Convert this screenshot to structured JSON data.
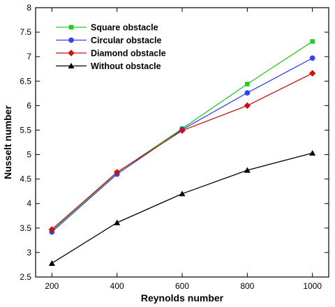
{
  "chart_data": {
    "type": "line",
    "xlabel": "Reynolds number",
    "ylabel": "Nusselt number",
    "xlim": [
      150,
      1050
    ],
    "ylim": [
      2.5,
      8
    ],
    "xticks": [
      200,
      400,
      600,
      800,
      1000
    ],
    "yticks": [
      2.5,
      3,
      3.5,
      4,
      4.5,
      5,
      5.5,
      6,
      6.5,
      7,
      7.5,
      8
    ],
    "xtick_labels": [
      "200",
      "400",
      "600",
      "800",
      "1000"
    ],
    "ytick_labels": [
      "2.5",
      "3",
      "3.5",
      "4",
      "4.5",
      "5",
      "5.5",
      "6",
      "6.5",
      "7",
      "7.5",
      "8"
    ],
    "grid": false,
    "legend_position": "top-left",
    "x": [
      200,
      400,
      600,
      800,
      1000
    ],
    "series": [
      {
        "name": "Square obstacle",
        "color": "#22cc22",
        "marker": "square",
        "values": [
          3.45,
          4.63,
          5.53,
          6.44,
          7.31
        ]
      },
      {
        "name": "Circular obstacle",
        "color": "#3344ee",
        "marker": "circle",
        "values": [
          3.42,
          4.6,
          5.51,
          6.26,
          6.97
        ]
      },
      {
        "name": "Diamond obstacle",
        "color": "#cc1111",
        "marker": "diamond",
        "values": [
          3.47,
          4.64,
          5.49,
          6.0,
          6.66
        ]
      },
      {
        "name": "Without obstacle",
        "color": "#000000",
        "marker": "triangle",
        "values": [
          2.78,
          3.61,
          4.2,
          4.68,
          5.03
        ]
      }
    ]
  }
}
